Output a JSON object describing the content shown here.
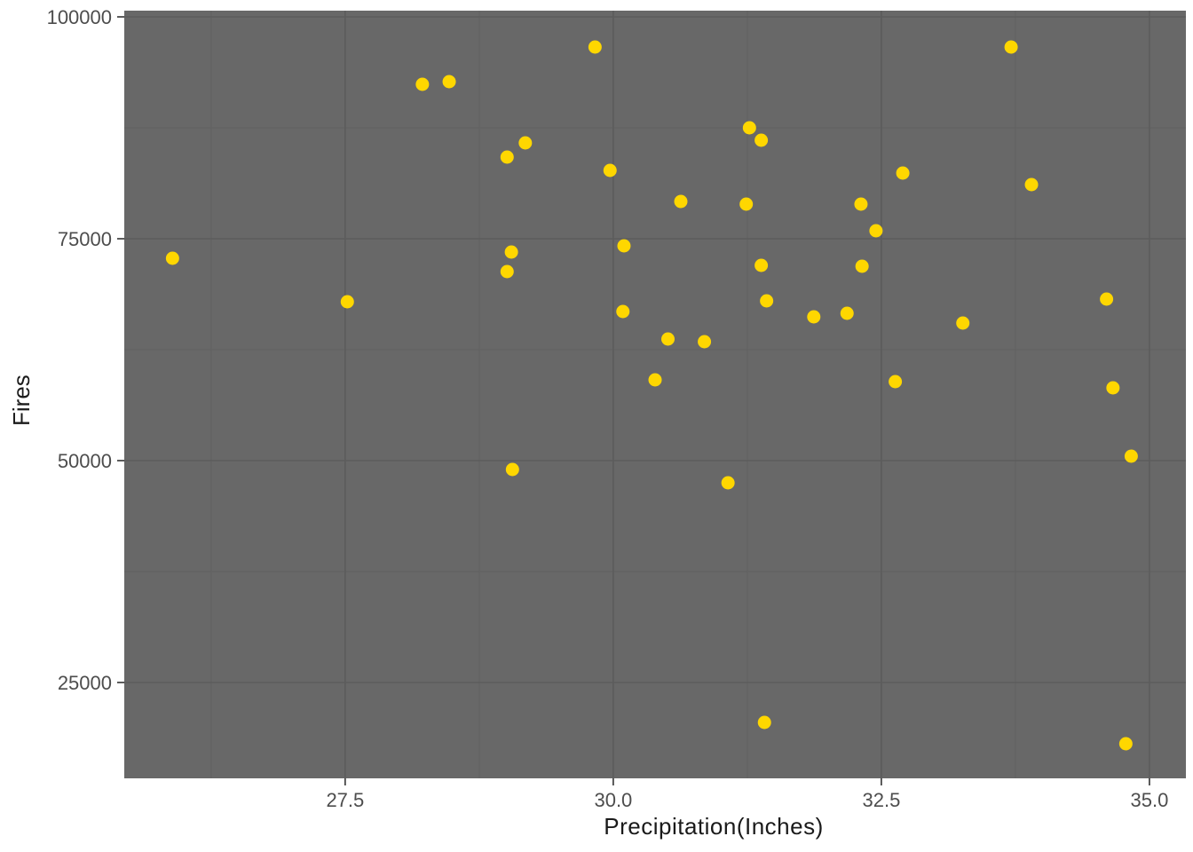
{
  "figure": {
    "x_axis_title": "Precipitation(Inches)",
    "y_axis_title": "Fires"
  },
  "chart_data": {
    "type": "scatter",
    "title": "",
    "xlabel": "Precipitation(Inches)",
    "ylabel": "Fires",
    "xlim": [
      25.44,
      35.34
    ],
    "ylim": [
      14200,
      100700
    ],
    "x_ticks": [
      27.5,
      30.0,
      32.5,
      35.0
    ],
    "x_tick_labels": [
      "27.5",
      "30.0",
      "32.5",
      "35.0"
    ],
    "x_minor_gridlines": [
      26.25,
      28.75,
      31.25,
      33.75
    ],
    "y_ticks": [
      25000,
      50000,
      75000,
      100000
    ],
    "y_tick_labels": [
      "25000",
      "50000",
      "75000",
      "100000"
    ],
    "y_minor_gridlines": [
      37500,
      62500,
      87500
    ],
    "grid": true,
    "legend": false,
    "style": {
      "panel_background": "#686868",
      "grid_major_color": "#5c5c5c",
      "grid_minor_color": "#616161",
      "tick_color": "#333333",
      "tick_label_color": "#4d4d4d",
      "point_color": "#FFD700",
      "point_radius": 7.5
    },
    "points": [
      {
        "x": 25.89,
        "y": 72800
      },
      {
        "x": 27.52,
        "y": 67900
      },
      {
        "x": 28.22,
        "y": 92400
      },
      {
        "x": 28.47,
        "y": 92700
      },
      {
        "x": 29.01,
        "y": 84200
      },
      {
        "x": 29.01,
        "y": 71300
      },
      {
        "x": 29.05,
        "y": 73500
      },
      {
        "x": 29.06,
        "y": 49000
      },
      {
        "x": 29.18,
        "y": 85800
      },
      {
        "x": 29.83,
        "y": 96600
      },
      {
        "x": 29.97,
        "y": 82700
      },
      {
        "x": 30.09,
        "y": 66800
      },
      {
        "x": 30.1,
        "y": 74200
      },
      {
        "x": 30.39,
        "y": 59100
      },
      {
        "x": 30.51,
        "y": 63700
      },
      {
        "x": 30.63,
        "y": 79200
      },
      {
        "x": 30.85,
        "y": 63400
      },
      {
        "x": 31.07,
        "y": 47500
      },
      {
        "x": 31.24,
        "y": 78900
      },
      {
        "x": 31.27,
        "y": 87500
      },
      {
        "x": 31.38,
        "y": 86100
      },
      {
        "x": 31.38,
        "y": 72000
      },
      {
        "x": 31.41,
        "y": 20500
      },
      {
        "x": 31.43,
        "y": 68000
      },
      {
        "x": 31.87,
        "y": 66200
      },
      {
        "x": 32.18,
        "y": 66600
      },
      {
        "x": 32.31,
        "y": 78900
      },
      {
        "x": 32.32,
        "y": 71900
      },
      {
        "x": 32.45,
        "y": 75900
      },
      {
        "x": 32.63,
        "y": 58900
      },
      {
        "x": 32.7,
        "y": 82400
      },
      {
        "x": 33.26,
        "y": 65500
      },
      {
        "x": 33.71,
        "y": 96600
      },
      {
        "x": 33.9,
        "y": 81100
      },
      {
        "x": 34.6,
        "y": 68200
      },
      {
        "x": 34.66,
        "y": 58200
      },
      {
        "x": 34.78,
        "y": 18100
      },
      {
        "x": 34.83,
        "y": 50500
      }
    ]
  }
}
